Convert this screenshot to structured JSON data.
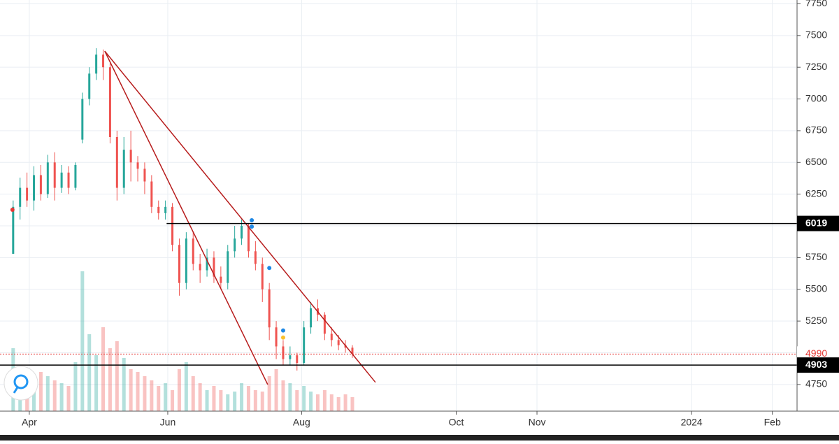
{
  "chart_data": {
    "type": "candlestick",
    "x": [
      -7,
      -4,
      -1,
      2,
      5,
      8,
      11,
      14,
      17,
      20,
      23,
      26,
      29,
      32,
      35,
      38,
      41,
      44,
      47,
      50,
      53,
      56,
      59,
      62,
      65,
      68,
      71,
      74,
      77,
      80,
      83,
      86,
      89,
      92,
      95,
      98,
      101,
      104,
      107,
      110,
      113,
      116,
      119,
      122,
      125,
      128,
      131,
      134,
      137,
      140
    ],
    "open": [
      5780,
      6150,
      6300,
      6200,
      6400,
      6250,
      6500,
      6300,
      6420,
      6300,
      6680,
      7000,
      7200,
      7350,
      7250,
      6700,
      6300,
      6600,
      6500,
      6450,
      6350,
      6150,
      6100,
      6150,
      5850,
      5550,
      5900,
      5700,
      5650,
      5750,
      5600,
      5550,
      5800,
      5900,
      6000,
      5800,
      5700,
      5500,
      5200,
      5050,
      4950,
      4980,
      4920,
      5200,
      5350,
      5300,
      5150,
      5100,
      5060,
      5040
    ],
    "close": [
      6150,
      6300,
      6200,
      6400,
      6250,
      6500,
      6300,
      6420,
      6300,
      6480,
      7000,
      7200,
      7350,
      7250,
      6700,
      6300,
      6600,
      6500,
      6450,
      6350,
      6150,
      6100,
      6150,
      5850,
      5550,
      5900,
      5700,
      5650,
      5750,
      5600,
      5550,
      5800,
      5900,
      6000,
      5800,
      5700,
      5500,
      5200,
      5050,
      4950,
      4980,
      4920,
      5200,
      5350,
      5300,
      5150,
      5100,
      5060,
      5040,
      4990
    ],
    "high": [
      6200,
      6380,
      6420,
      6470,
      6480,
      6560,
      6580,
      6480,
      6470,
      6500,
      7050,
      7250,
      7400,
      7390,
      7280,
      6750,
      6700,
      6750,
      6550,
      6500,
      6400,
      6200,
      6200,
      6180,
      5900,
      5950,
      5950,
      5780,
      5820,
      5800,
      5680,
      5850,
      6000,
      6050,
      6020,
      5880,
      5750,
      5550,
      5250,
      5100,
      5050,
      5000,
      5250,
      5400,
      5420,
      5320,
      5200,
      5140,
      5100,
      5060
    ],
    "low": [
      5780,
      6050,
      6150,
      6120,
      6200,
      6220,
      6200,
      6260,
      6250,
      6280,
      6650,
      6950,
      7150,
      7150,
      6650,
      6200,
      6250,
      6350,
      6350,
      6250,
      6100,
      6050,
      6050,
      5800,
      5450,
      5500,
      5650,
      5550,
      5600,
      5550,
      5500,
      5500,
      5750,
      5850,
      5750,
      5650,
      5400,
      5100,
      4950,
      4900,
      4900,
      4860,
      4900,
      5150,
      5250,
      5100,
      5050,
      5020,
      5000,
      4960
    ],
    "volume": [
      45,
      30,
      25,
      20,
      28,
      25,
      22,
      20,
      18,
      35,
      100,
      55,
      40,
      60,
      45,
      50,
      38,
      30,
      28,
      25,
      22,
      18,
      20,
      15,
      30,
      35,
      25,
      20,
      15,
      18,
      15,
      12,
      14,
      20,
      18,
      15,
      14,
      25,
      30,
      22,
      20,
      15,
      18,
      14,
      12,
      15,
      12,
      10,
      12,
      10
    ],
    "up_color": "#26a69a",
    "down_color": "#ef5350",
    "xlim": [
      -12.7,
      332.7
    ],
    "ylim": [
      4540,
      7780
    ],
    "xticks": [
      {
        "value": 0,
        "label": "Apr"
      },
      {
        "value": 60,
        "label": "Jun"
      },
      {
        "value": 118,
        "label": "Aug"
      },
      {
        "value": 185,
        "label": "Oct"
      },
      {
        "value": 220,
        "label": "Nov"
      },
      {
        "value": 287,
        "label": "2024"
      },
      {
        "value": 322,
        "label": "Feb"
      }
    ],
    "yticks": [
      4750,
      5000,
      5250,
      5500,
      5750,
      6000,
      6250,
      6500,
      6750,
      7000,
      7250,
      7500,
      7750
    ],
    "grid": true,
    "hlines": [
      {
        "value": 6019,
        "color": "#000000",
        "from": 59.5
      },
      {
        "value": 4903,
        "color": "#000000",
        "from": -12.7
      }
    ],
    "price_line": {
      "value": 4990,
      "color": "#e53935"
    },
    "trendlines": [
      {
        "x": [
          32.7,
          103.3
        ],
        "y": [
          7377,
          4750
        ],
        "color": "#b71c1c"
      },
      {
        "x": [
          32.7,
          150
        ],
        "y": [
          7377,
          4767
        ],
        "color": "#b71c1c"
      }
    ],
    "markers": [
      {
        "x": 96.4,
        "y": 6044,
        "color": "#1e88e5"
      },
      {
        "x": 96.4,
        "y": 5994,
        "color": "#1e88e5"
      },
      {
        "x": 104,
        "y": 5668,
        "color": "#1e88e5"
      },
      {
        "x": 110,
        "y": 5176,
        "color": "#1e88e5"
      },
      {
        "x": 110,
        "y": 5120,
        "color": "#fbc02d"
      },
      {
        "x": -7.3,
        "y": 6127,
        "color": "#e53935"
      }
    ]
  }
}
